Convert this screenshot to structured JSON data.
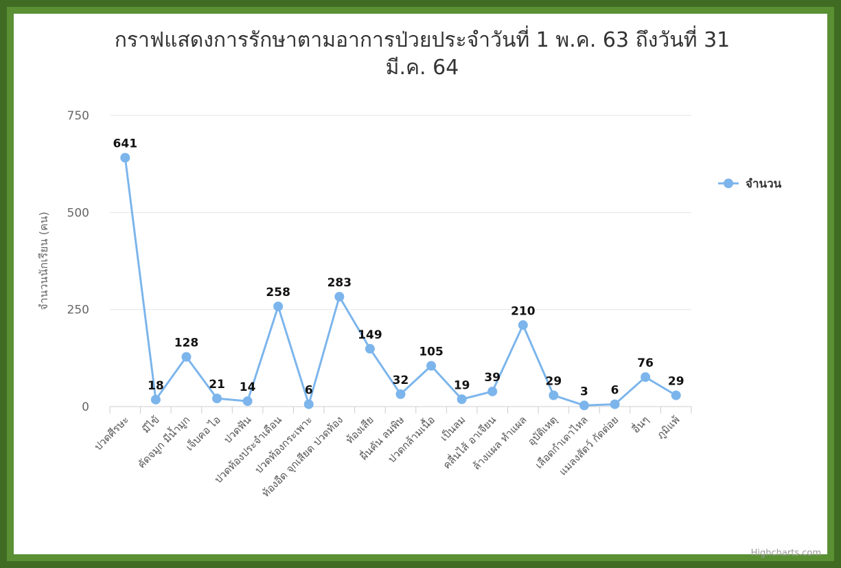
{
  "chart_data": {
    "type": "line",
    "title_line1": "กราฟแสดงการรักษาตามอาการป่วยประจำวันที่ 1 พ.ค. 63 ถึงวันที่ 31",
    "title_line2": "มี.ค. 64",
    "ylabel": "จำนวนนักเรียน (คน)",
    "xlabel": "",
    "ylim": [
      0,
      750
    ],
    "yticks": [
      "0",
      "250",
      "500",
      "750"
    ],
    "categories": [
      "ปวดศีรษะ",
      "มีไข้",
      "คัดจมูก มีน้ำมูก",
      "เจ็บคอ ไอ",
      "ปวดฟัน",
      "ปวดท้องประจำเดือน",
      "ปวดท้องกระเพาะ",
      "ท้องอืด จุกเสียด ปวดท้อง",
      "ท้องเสีย",
      "ผื่นคัน ลมพิษ",
      "ปวดกล้ามเนื้อ",
      "เป็นลม",
      "คลื่นไส้ อาเจียน",
      "ล้างแผล ทำแผล",
      "อุบัติเหตุ",
      "เลือดกำเดาไหล",
      "แมลงสัตว์ กัดต่อย",
      "อื่นๆ",
      "ภูมิแพ้"
    ],
    "series": [
      {
        "name": "จำนวน",
        "color": "#7cb5ec",
        "values": [
          641,
          18,
          128,
          21,
          14,
          258,
          6,
          283,
          149,
          32,
          105,
          19,
          39,
          210,
          29,
          3,
          6,
          76,
          29
        ],
        "labels": [
          "641",
          "18",
          "128",
          "21",
          "14",
          "258",
          "6",
          "283",
          "149",
          "32",
          "105",
          "19",
          "39",
          "210",
          "29",
          "3",
          "6",
          "76",
          "29"
        ]
      }
    ],
    "grid": true,
    "legend": "right",
    "credits": "Highcharts.com"
  },
  "colors": {
    "border_outer": "#3f6b22",
    "border_inner": "#5a8f34",
    "grid": "#e6e6e6"
  }
}
